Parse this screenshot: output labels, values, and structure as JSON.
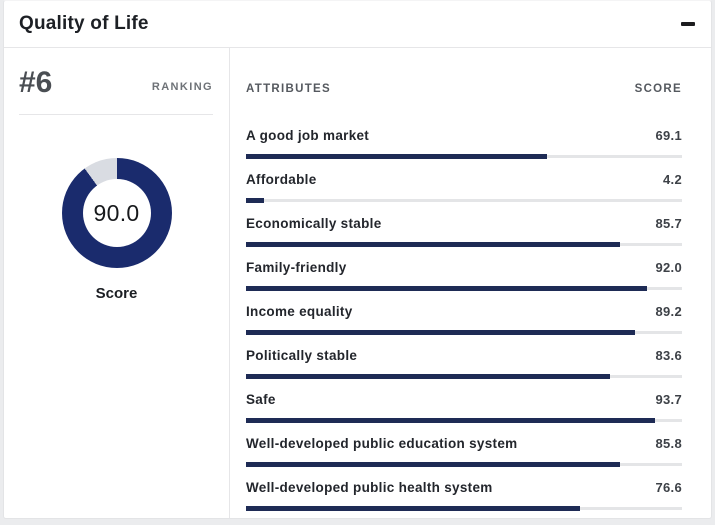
{
  "header": {
    "title": "Quality of Life",
    "collapse_icon": "minus"
  },
  "ranking": {
    "rank": "#6",
    "label": "RANKING"
  },
  "donut": {
    "score_display": "90.0",
    "score_value": 90.0,
    "caption": "Score",
    "ring_color": "#1a2b6d",
    "gap_color": "#d9dce2"
  },
  "attributes": {
    "col_attributes": "ATTRIBUTES",
    "col_score": "SCORE",
    "bar_color": "#1e2b55",
    "track_color": "#e4e5e7",
    "rows": [
      {
        "label": "A good job market",
        "score": "69.1"
      },
      {
        "label": "Affordable",
        "score": "4.2"
      },
      {
        "label": "Economically stable",
        "score": "85.7"
      },
      {
        "label": "Family-friendly",
        "score": "92.0"
      },
      {
        "label": "Income equality",
        "score": "89.2"
      },
      {
        "label": "Politically stable",
        "score": "83.6"
      },
      {
        "label": "Safe",
        "score": "93.7"
      },
      {
        "label": "Well-developed public education system",
        "score": "85.8"
      },
      {
        "label": "Well-developed public health system",
        "score": "76.6"
      }
    ]
  },
  "chart_data": [
    {
      "type": "pie",
      "subtype": "donut",
      "title": "Quality of Life Score",
      "labels": [
        "Score",
        "Remainder"
      ],
      "values": [
        90.0,
        10.0
      ],
      "center_label": "90.0",
      "colors": [
        "#1a2b6d",
        "#d9dce2"
      ]
    },
    {
      "type": "bar",
      "orientation": "horizontal",
      "title": "Quality of Life attribute scores",
      "categories": [
        "A good job market",
        "Affordable",
        "Economically stable",
        "Family-friendly",
        "Income equality",
        "Politically stable",
        "Safe",
        "Well-developed public education system",
        "Well-developed public health system"
      ],
      "values": [
        69.1,
        4.2,
        85.7,
        92.0,
        89.2,
        83.6,
        93.7,
        85.8,
        76.6
      ],
      "xlim": [
        0,
        100
      ],
      "grid": false,
      "legend": false,
      "bar_color": "#1e2b55",
      "track_color": "#e4e5e7"
    }
  ]
}
